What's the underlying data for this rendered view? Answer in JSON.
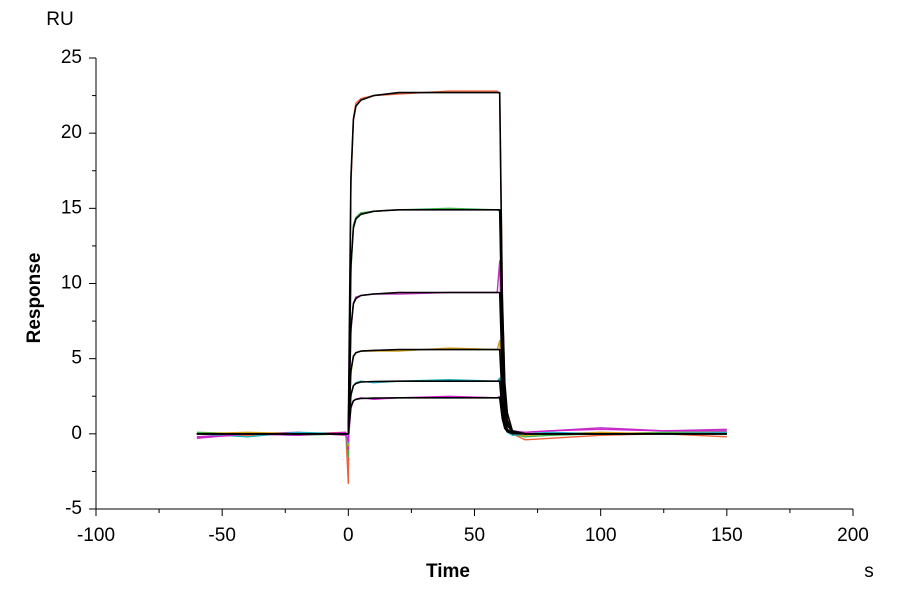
{
  "chart_data": {
    "type": "line",
    "y_unit": "RU",
    "ylabel": "Response",
    "xlabel": "Time",
    "x_unit": "s",
    "xlim": [
      -100,
      200
    ],
    "xticks": [
      -100,
      -50,
      0,
      50,
      100,
      150,
      200
    ],
    "xminor_ticks": [
      -75,
      -25,
      25,
      75,
      125,
      175
    ],
    "ylim": [
      -5,
      25
    ],
    "yticks": [
      -5,
      0,
      5,
      10,
      15,
      20,
      25
    ],
    "yminor_ticks": [
      -2.5,
      2.5,
      7.5,
      12.5,
      17.5,
      22.5
    ],
    "x": [
      -60,
      -40,
      -20,
      -1,
      0,
      1,
      2,
      3,
      5,
      10,
      20,
      40,
      59,
      60,
      61,
      62,
      63,
      65,
      70,
      80,
      100,
      125,
      150
    ],
    "series": [
      {
        "color": "#f0603a",
        "values": [
          -0.2,
          -0.1,
          0.0,
          0.1,
          -3.3,
          16.5,
          21.0,
          22.0,
          22.3,
          22.5,
          22.6,
          22.8,
          22.8,
          22.6,
          9.5,
          3.0,
          1.0,
          0.0,
          -0.4,
          -0.3,
          -0.1,
          0.0,
          -0.2
        ]
      },
      {
        "color": "#3cb44b",
        "values": [
          0.1,
          0.0,
          -0.1,
          0.0,
          -1.5,
          10.8,
          13.9,
          14.4,
          14.7,
          14.8,
          14.9,
          15.0,
          14.9,
          14.8,
          6.3,
          2.0,
          0.7,
          0.0,
          -0.2,
          -0.1,
          0.0,
          0.1,
          0.1
        ]
      },
      {
        "color": "#c030c0",
        "values": [
          -0.2,
          0.0,
          0.1,
          -0.1,
          -1.0,
          6.8,
          8.7,
          9.1,
          9.2,
          9.3,
          9.3,
          9.4,
          9.4,
          11.5,
          4.0,
          1.2,
          0.5,
          0.2,
          0.1,
          0.2,
          0.4,
          0.2,
          0.3
        ]
      },
      {
        "color": "#d4a017",
        "values": [
          0.0,
          0.1,
          0.0,
          0.0,
          -0.8,
          4.0,
          5.2,
          5.4,
          5.5,
          5.5,
          5.5,
          5.7,
          5.6,
          6.2,
          2.5,
          0.7,
          0.2,
          0.0,
          -0.1,
          0.0,
          0.1,
          0.0,
          0.1
        ]
      },
      {
        "color": "#20b0c0",
        "values": [
          0.0,
          -0.2,
          0.1,
          0.0,
          -0.6,
          2.5,
          3.2,
          3.4,
          3.5,
          3.4,
          3.5,
          3.6,
          3.5,
          3.7,
          1.3,
          0.4,
          0.1,
          -0.1,
          0.0,
          0.1,
          0.0,
          0.0,
          0.1
        ]
      },
      {
        "color": "#d020d0",
        "values": [
          -0.3,
          0.0,
          -0.1,
          0.1,
          -0.5,
          1.7,
          2.2,
          2.3,
          2.4,
          2.3,
          2.4,
          2.5,
          2.4,
          2.5,
          1.1,
          0.4,
          0.2,
          0.0,
          0.1,
          0.2,
          0.3,
          0.2,
          0.2
        ]
      },
      {
        "color": "#000000",
        "values": [
          0,
          0,
          0,
          0,
          0,
          17.0,
          20.9,
          21.8,
          22.2,
          22.5,
          22.7,
          22.7,
          22.7,
          22.7,
          9.1,
          3.4,
          1.4,
          0.2,
          0,
          0,
          0,
          0,
          0
        ]
      },
      {
        "color": "#000000",
        "values": [
          0,
          0,
          0,
          0,
          0,
          11.2,
          13.7,
          14.3,
          14.6,
          14.8,
          14.9,
          14.9,
          14.9,
          14.9,
          6.0,
          2.2,
          0.9,
          0.1,
          0,
          0,
          0,
          0,
          0
        ]
      },
      {
        "color": "#000000",
        "values": [
          0,
          0,
          0,
          0,
          0,
          7.05,
          8.65,
          9.0,
          9.2,
          9.3,
          9.4,
          9.4,
          9.4,
          9.4,
          3.8,
          1.4,
          0.6,
          0.1,
          0,
          0,
          0,
          0,
          0
        ]
      },
      {
        "color": "#000000",
        "values": [
          0,
          0,
          0,
          0,
          0,
          4.2,
          5.15,
          5.4,
          5.5,
          5.55,
          5.6,
          5.6,
          5.6,
          5.6,
          2.3,
          0.8,
          0.3,
          0.05,
          0,
          0,
          0,
          0,
          0
        ]
      },
      {
        "color": "#000000",
        "values": [
          0,
          0,
          0,
          0,
          0,
          2.6,
          3.2,
          3.35,
          3.45,
          3.48,
          3.5,
          3.5,
          3.5,
          3.5,
          1.4,
          0.5,
          0.2,
          0.03,
          0,
          0,
          0,
          0,
          0
        ]
      },
      {
        "color": "#000000",
        "values": [
          0,
          0,
          0,
          0,
          0,
          1.8,
          2.2,
          2.3,
          2.35,
          2.38,
          2.4,
          2.4,
          2.4,
          2.4,
          1.0,
          0.36,
          0.14,
          0.02,
          0,
          0,
          0,
          0,
          0
        ]
      }
    ]
  }
}
